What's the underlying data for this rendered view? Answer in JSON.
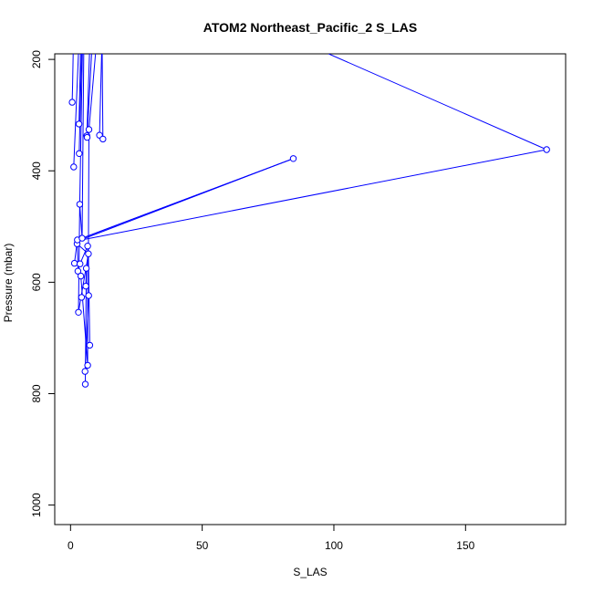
{
  "chart_data": {
    "type": "scatter",
    "title": "ATOM2 Northeast_Pacific_2 S_LAS",
    "xlabel": "S_LAS",
    "ylabel": "Pressure (mbar)",
    "xlim": [
      -6,
      188
    ],
    "ylim": [
      1035,
      190
    ],
    "y_reversed": true,
    "xticks": [
      0,
      50,
      100,
      150
    ],
    "yticks": [
      200,
      400,
      600,
      800,
      1000
    ],
    "color": "#0000ff",
    "grid": false,
    "points": [
      {
        "x": 0.6,
        "y": 277
      },
      {
        "x": 1.2,
        "y": 393
      },
      {
        "x": 1.5,
        "y": 566
      },
      {
        "x": 2.5,
        "y": 531
      },
      {
        "x": 2.6,
        "y": 524
      },
      {
        "x": 2.8,
        "y": 580
      },
      {
        "x": 3.0,
        "y": 654
      },
      {
        "x": 3.2,
        "y": 316
      },
      {
        "x": 3.3,
        "y": 369
      },
      {
        "x": 3.5,
        "y": 460
      },
      {
        "x": 3.6,
        "y": 567
      },
      {
        "x": 3.9,
        "y": 589
      },
      {
        "x": 4.2,
        "y": 627
      },
      {
        "x": 4.4,
        "y": 521
      },
      {
        "x": 5.5,
        "y": 760
      },
      {
        "x": 5.6,
        "y": 783
      },
      {
        "x": 5.8,
        "y": 607
      },
      {
        "x": 6.0,
        "y": 575
      },
      {
        "x": 6.2,
        "y": 337
      },
      {
        "x": 6.3,
        "y": 340
      },
      {
        "x": 6.5,
        "y": 535
      },
      {
        "x": 6.5,
        "y": 749
      },
      {
        "x": 6.8,
        "y": 549
      },
      {
        "x": 6.9,
        "y": 624
      },
      {
        "x": 7.0,
        "y": 326
      },
      {
        "x": 7.3,
        "y": 713
      },
      {
        "x": 11.0,
        "y": 336
      },
      {
        "x": 12.3,
        "y": 343
      },
      {
        "x": 84.6,
        "y": 378
      },
      {
        "x": 180.8,
        "y": 362
      }
    ],
    "segments": [
      [
        [
          0.6,
          277
        ],
        [
          0.8,
          245
        ],
        [
          1.0,
          190
        ]
      ],
      [
        [
          1.2,
          393
        ],
        [
          3.0,
          190
        ]
      ],
      [
        [
          3.2,
          316
        ],
        [
          3.8,
          190
        ]
      ],
      [
        [
          3.3,
          369
        ],
        [
          4.2,
          190
        ]
      ],
      [
        [
          3.5,
          460
        ],
        [
          4.5,
          190
        ]
      ],
      [
        [
          4.4,
          521
        ],
        [
          5.0,
          190
        ]
      ],
      [
        [
          6.2,
          337
        ],
        [
          7.2,
          190
        ]
      ],
      [
        [
          6.3,
          340
        ],
        [
          8.0,
          190
        ]
      ],
      [
        [
          7.0,
          326
        ],
        [
          9.5,
          190
        ]
      ],
      [
        [
          11.0,
          336
        ],
        [
          11.8,
          190
        ]
      ],
      [
        [
          12.3,
          343
        ],
        [
          12.0,
          190
        ]
      ],
      [
        [
          3.0,
          654
        ],
        [
          3.5,
          460
        ],
        [
          4.4,
          521
        ]
      ],
      [
        [
          3.6,
          567
        ],
        [
          6.5,
          535
        ],
        [
          6.5,
          749
        ]
      ],
      [
        [
          5.6,
          783
        ],
        [
          6.0,
          575
        ],
        [
          5.8,
          607
        ]
      ],
      [
        [
          5.5,
          760
        ],
        [
          6.9,
          624
        ],
        [
          4.2,
          627
        ]
      ],
      [
        [
          7.3,
          713
        ],
        [
          6.8,
          549
        ],
        [
          2.5,
          531
        ]
      ],
      [
        [
          2.8,
          580
        ],
        [
          3.9,
          589
        ],
        [
          6.5,
          749
        ]
      ],
      [
        [
          1.5,
          566
        ],
        [
          2.6,
          524
        ],
        [
          2.8,
          580
        ]
      ],
      [
        [
          3.0,
          654
        ],
        [
          6.8,
          549
        ],
        [
          7.0,
          326
        ]
      ],
      [
        [
          4.4,
          521
        ],
        [
          84.6,
          378
        ]
      ],
      [
        [
          5.0,
          522
        ],
        [
          84.6,
          378
        ]
      ],
      [
        [
          6.0,
          518
        ],
        [
          84.6,
          378
        ]
      ],
      [
        [
          5.5,
          523
        ],
        [
          180.8,
          362
        ]
      ],
      [
        [
          180.8,
          362
        ],
        [
          98.0,
          190
        ]
      ]
    ]
  }
}
